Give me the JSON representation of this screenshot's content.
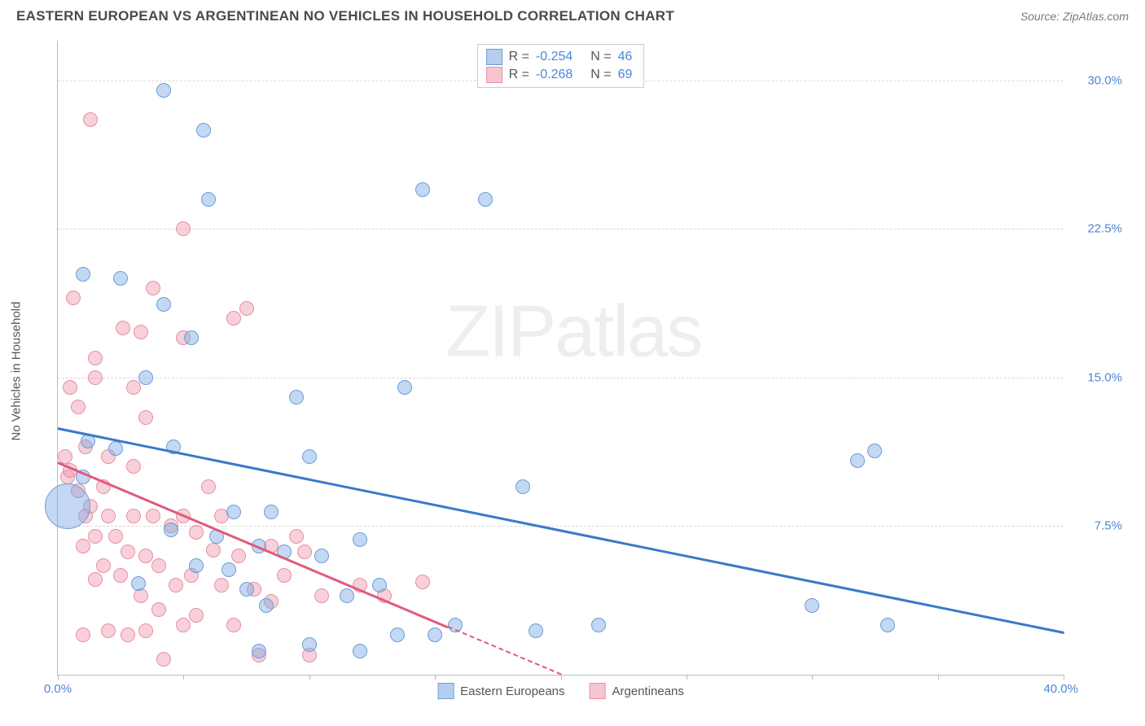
{
  "header": {
    "title": "EASTERN EUROPEAN VS ARGENTINEAN NO VEHICLES IN HOUSEHOLD CORRELATION CHART",
    "source": "Source: ZipAtlas.com"
  },
  "chart": {
    "type": "scatter",
    "ylabel": "No Vehicles in Household",
    "xlim": [
      0,
      40
    ],
    "ylim": [
      0,
      32
    ],
    "ytick_positions": [
      7.5,
      15.0,
      22.5,
      30.0
    ],
    "ytick_labels": [
      "7.5%",
      "15.0%",
      "22.5%",
      "30.0%"
    ],
    "xtick_positions": [
      0,
      5,
      10,
      15,
      20,
      25,
      30,
      35,
      40
    ],
    "xtick_labels_shown": {
      "0": "0.0%",
      "40": "40.0%"
    },
    "grid_color": "#d8d8d8",
    "axis_color": "#bbbbbb",
    "background_color": "#ffffff",
    "tick_label_color": "#4a86d8",
    "axis_label_color": "#555555",
    "watermark": {
      "bold": "ZIP",
      "light": "atlas",
      "color": "rgba(120,120,120,0.13)",
      "fontsize": 90
    }
  },
  "series": {
    "blue": {
      "label": "Eastern Europeans",
      "fill": "rgba(122,168,226,0.45)",
      "stroke": "#6b9ed8",
      "line_color": "#3b78c9",
      "trend": {
        "x1": 0,
        "y1": 12.5,
        "x2": 40,
        "y2": 2.2
      },
      "radius_default": 9,
      "points": [
        {
          "x": 0.4,
          "y": 8.5,
          "r": 28
        },
        {
          "x": 1.0,
          "y": 10.0
        },
        {
          "x": 1.2,
          "y": 11.8
        },
        {
          "x": 1.0,
          "y": 20.2
        },
        {
          "x": 2.3,
          "y": 11.4
        },
        {
          "x": 2.5,
          "y": 20.0
        },
        {
          "x": 3.2,
          "y": 4.6
        },
        {
          "x": 3.5,
          "y": 15.0
        },
        {
          "x": 4.5,
          "y": 7.3
        },
        {
          "x": 4.6,
          "y": 11.5
        },
        {
          "x": 4.2,
          "y": 18.7
        },
        {
          "x": 4.2,
          "y": 29.5
        },
        {
          "x": 5.5,
          "y": 5.5
        },
        {
          "x": 5.3,
          "y": 17.0
        },
        {
          "x": 6.0,
          "y": 24.0
        },
        {
          "x": 5.8,
          "y": 27.5
        },
        {
          "x": 6.3,
          "y": 7.0
        },
        {
          "x": 6.8,
          "y": 5.3
        },
        {
          "x": 7.0,
          "y": 8.2
        },
        {
          "x": 7.5,
          "y": 4.3
        },
        {
          "x": 8.0,
          "y": 1.2
        },
        {
          "x": 8.0,
          "y": 6.5
        },
        {
          "x": 8.3,
          "y": 3.5
        },
        {
          "x": 9.0,
          "y": 6.2
        },
        {
          "x": 8.5,
          "y": 8.2
        },
        {
          "x": 9.5,
          "y": 14.0
        },
        {
          "x": 10.0,
          "y": 1.5
        },
        {
          "x": 10.5,
          "y": 6.0
        },
        {
          "x": 10.0,
          "y": 11.0
        },
        {
          "x": 11.5,
          "y": 4.0
        },
        {
          "x": 12.0,
          "y": 6.8
        },
        {
          "x": 12.0,
          "y": 1.2
        },
        {
          "x": 12.8,
          "y": 4.5
        },
        {
          "x": 13.5,
          "y": 2.0
        },
        {
          "x": 14.5,
          "y": 24.5
        },
        {
          "x": 13.8,
          "y": 14.5
        },
        {
          "x": 15.0,
          "y": 2.0
        },
        {
          "x": 15.8,
          "y": 2.5
        },
        {
          "x": 17.0,
          "y": 24.0
        },
        {
          "x": 18.5,
          "y": 9.5
        },
        {
          "x": 19.0,
          "y": 2.2
        },
        {
          "x": 21.5,
          "y": 2.5
        },
        {
          "x": 30.0,
          "y": 3.5
        },
        {
          "x": 31.8,
          "y": 10.8
        },
        {
          "x": 32.5,
          "y": 11.3
        },
        {
          "x": 33.0,
          "y": 2.5
        }
      ]
    },
    "pink": {
      "label": "Argentineans",
      "fill": "rgba(240,150,170,0.45)",
      "stroke": "#e690a5",
      "line_color": "#e15a7a",
      "trend_solid": {
        "x1": 0,
        "y1": 10.8,
        "x2": 15.5,
        "y2": 2.5
      },
      "trend_dash": {
        "x1": 15.5,
        "y1": 2.5,
        "x2": 20,
        "y2": 0.1
      },
      "radius_default": 9,
      "points": [
        {
          "x": 0.3,
          "y": 11.0
        },
        {
          "x": 0.4,
          "y": 10.0
        },
        {
          "x": 0.5,
          "y": 10.3
        },
        {
          "x": 0.5,
          "y": 14.5
        },
        {
          "x": 0.6,
          "y": 19.0
        },
        {
          "x": 0.8,
          "y": 9.3
        },
        {
          "x": 0.8,
          "y": 13.5
        },
        {
          "x": 1.0,
          "y": 2.0
        },
        {
          "x": 1.0,
          "y": 6.5
        },
        {
          "x": 1.1,
          "y": 8.0
        },
        {
          "x": 1.1,
          "y": 11.5
        },
        {
          "x": 1.3,
          "y": 28.0
        },
        {
          "x": 1.3,
          "y": 8.5
        },
        {
          "x": 1.5,
          "y": 4.8
        },
        {
          "x": 1.5,
          "y": 7.0
        },
        {
          "x": 1.5,
          "y": 15.0
        },
        {
          "x": 1.5,
          "y": 16.0
        },
        {
          "x": 1.8,
          "y": 5.5
        },
        {
          "x": 1.8,
          "y": 9.5
        },
        {
          "x": 2.0,
          "y": 2.2
        },
        {
          "x": 2.0,
          "y": 8.0
        },
        {
          "x": 2.0,
          "y": 11.0
        },
        {
          "x": 2.3,
          "y": 7.0
        },
        {
          "x": 2.5,
          "y": 5.0
        },
        {
          "x": 2.6,
          "y": 17.5
        },
        {
          "x": 2.8,
          "y": 2.0
        },
        {
          "x": 2.8,
          "y": 6.2
        },
        {
          "x": 3.0,
          "y": 8.0
        },
        {
          "x": 3.0,
          "y": 10.5
        },
        {
          "x": 3.0,
          "y": 14.5
        },
        {
          "x": 3.3,
          "y": 17.3
        },
        {
          "x": 3.3,
          "y": 4.0
        },
        {
          "x": 3.5,
          "y": 2.2
        },
        {
          "x": 3.5,
          "y": 6.0
        },
        {
          "x": 3.5,
          "y": 13.0
        },
        {
          "x": 3.8,
          "y": 8.0
        },
        {
          "x": 3.8,
          "y": 19.5
        },
        {
          "x": 4.0,
          "y": 3.3
        },
        {
          "x": 4.0,
          "y": 5.5
        },
        {
          "x": 4.2,
          "y": 0.8
        },
        {
          "x": 4.5,
          "y": 7.5
        },
        {
          "x": 4.7,
          "y": 4.5
        },
        {
          "x": 5.0,
          "y": 2.5
        },
        {
          "x": 5.0,
          "y": 8.0
        },
        {
          "x": 5.0,
          "y": 17.0
        },
        {
          "x": 5.0,
          "y": 22.5
        },
        {
          "x": 5.3,
          "y": 5.0
        },
        {
          "x": 5.5,
          "y": 3.0
        },
        {
          "x": 5.5,
          "y": 7.2
        },
        {
          "x": 6.0,
          "y": 9.5
        },
        {
          "x": 6.2,
          "y": 6.3
        },
        {
          "x": 6.5,
          "y": 4.5
        },
        {
          "x": 6.5,
          "y": 8.0
        },
        {
          "x": 7.0,
          "y": 2.5
        },
        {
          "x": 7.0,
          "y": 18.0
        },
        {
          "x": 7.2,
          "y": 6.0
        },
        {
          "x": 7.5,
          "y": 18.5
        },
        {
          "x": 7.8,
          "y": 4.3
        },
        {
          "x": 8.0,
          "y": 1.0
        },
        {
          "x": 8.5,
          "y": 6.5
        },
        {
          "x": 8.5,
          "y": 3.7
        },
        {
          "x": 9.0,
          "y": 5.0
        },
        {
          "x": 9.5,
          "y": 7.0
        },
        {
          "x": 9.8,
          "y": 6.2
        },
        {
          "x": 10.0,
          "y": 1.0
        },
        {
          "x": 10.5,
          "y": 4.0
        },
        {
          "x": 12.0,
          "y": 4.5
        },
        {
          "x": 13.0,
          "y": 4.0
        },
        {
          "x": 14.5,
          "y": 4.7
        }
      ]
    }
  },
  "stats": {
    "rows": [
      {
        "swatch_fill": "rgba(122,168,226,0.55)",
        "swatch_stroke": "#6b9ed8",
        "r_label": "R =",
        "r_val": "-0.254",
        "n_label": "N =",
        "n_val": "46"
      },
      {
        "swatch_fill": "rgba(240,150,170,0.55)",
        "swatch_stroke": "#e690a5",
        "r_label": "R =",
        "r_val": "-0.268",
        "n_label": "N =",
        "n_val": "69"
      }
    ]
  },
  "legend": {
    "items": [
      {
        "swatch_fill": "rgba(122,168,226,0.55)",
        "swatch_stroke": "#6b9ed8",
        "label": "Eastern Europeans"
      },
      {
        "swatch_fill": "rgba(240,150,170,0.55)",
        "swatch_stroke": "#e690a5",
        "label": "Argentineans"
      }
    ]
  }
}
